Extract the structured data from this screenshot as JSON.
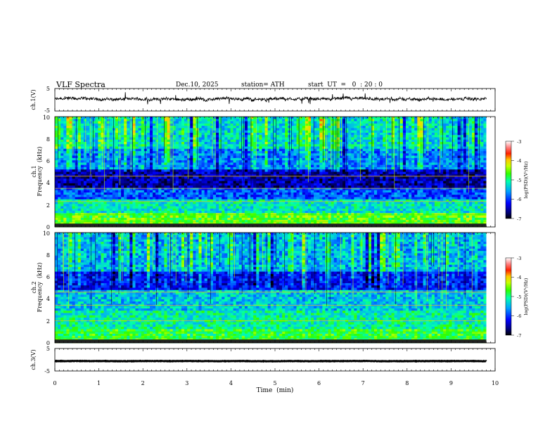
{
  "header": {
    "title": "VLF  Spectra",
    "date": "Dec.10, 2025",
    "station": "station= ATH",
    "start_ut": "start  UT  =   0  : 20 : 0"
  },
  "chart_data": [
    {
      "id": "ch1-waveform",
      "type": "line",
      "ylabel": "ch.1(V)",
      "ylim": [
        -5,
        5
      ],
      "yticks": [
        "5",
        "-5"
      ],
      "xlim": [
        0,
        10
      ],
      "signal_end_min": 9.8,
      "baseline_v": 0.3,
      "noise_amplitude_v": 1.2
    },
    {
      "id": "ch1-spectrogram",
      "type": "heatmap",
      "ylabel": "ch.1\nFrequency  (kHz)",
      "ylabel_lines": [
        "ch.1",
        "Frequency  (kHz)"
      ],
      "ylim_khz": [
        0,
        10
      ],
      "yticks": [
        "0",
        "2",
        "4",
        "6",
        "8",
        "10"
      ],
      "xlim": [
        0,
        10
      ],
      "signal_end_min": 9.8,
      "colorbar": {
        "label": "log(PSD)(V²/Hz)",
        "range": [
          -7,
          -3
        ],
        "ticks": [
          "-3",
          "-4",
          "-5",
          "-6",
          "-7"
        ]
      },
      "bands": [
        {
          "from_khz": 0.0,
          "to_khz": 1.2,
          "log_psd": -4.6
        },
        {
          "from_khz": 1.2,
          "to_khz": 2.5,
          "log_psd": -5.2
        },
        {
          "from_khz": 2.5,
          "to_khz": 3.6,
          "log_psd": -5.9
        },
        {
          "from_khz": 3.6,
          "to_khz": 5.2,
          "log_psd": -6.5
        },
        {
          "from_khz": 5.2,
          "to_khz": 7.0,
          "log_psd": -5.7
        },
        {
          "from_khz": 7.0,
          "to_khz": 10.0,
          "log_psd": -5.3
        }
      ]
    },
    {
      "id": "ch2-spectrogram",
      "type": "heatmap",
      "ylabel": "ch.2\nFrequency  (kHz)",
      "ylabel_lines": [
        "ch.2",
        "Frequency  (kHz)"
      ],
      "ylim_khz": [
        0,
        10
      ],
      "yticks": [
        "0",
        "2",
        "4",
        "6",
        "8",
        "10"
      ],
      "xlim": [
        0,
        10
      ],
      "signal_end_min": 9.8,
      "colorbar": {
        "label": "log(PSD)(V²/Hz)",
        "range": [
          -7,
          -3
        ],
        "ticks": [
          "-3",
          "-4",
          "-5",
          "-6",
          "-7"
        ]
      },
      "bands": [
        {
          "from_khz": 0.0,
          "to_khz": 1.2,
          "log_psd": -4.8
        },
        {
          "from_khz": 1.2,
          "to_khz": 3.0,
          "log_psd": -5.1
        },
        {
          "from_khz": 3.0,
          "to_khz": 4.8,
          "log_psd": -5.4
        },
        {
          "from_khz": 4.8,
          "to_khz": 6.5,
          "log_psd": -6.2
        },
        {
          "from_khz": 6.5,
          "to_khz": 10.0,
          "log_psd": -5.5
        }
      ]
    },
    {
      "id": "ch3-waveform",
      "type": "line",
      "ylabel": "ch.3(V)",
      "ylim": [
        -5,
        5
      ],
      "yticks": [
        "5",
        "-5"
      ],
      "xlim": [
        0,
        10
      ],
      "signal_end_min": 9.8,
      "baseline_v": -0.6,
      "noise_amplitude_v": 0.15
    }
  ],
  "x_axis": {
    "label": "Time  (min)",
    "ticks": [
      "0",
      "1",
      "2",
      "3",
      "4",
      "5",
      "6",
      "7",
      "8",
      "9",
      "10"
    ]
  }
}
